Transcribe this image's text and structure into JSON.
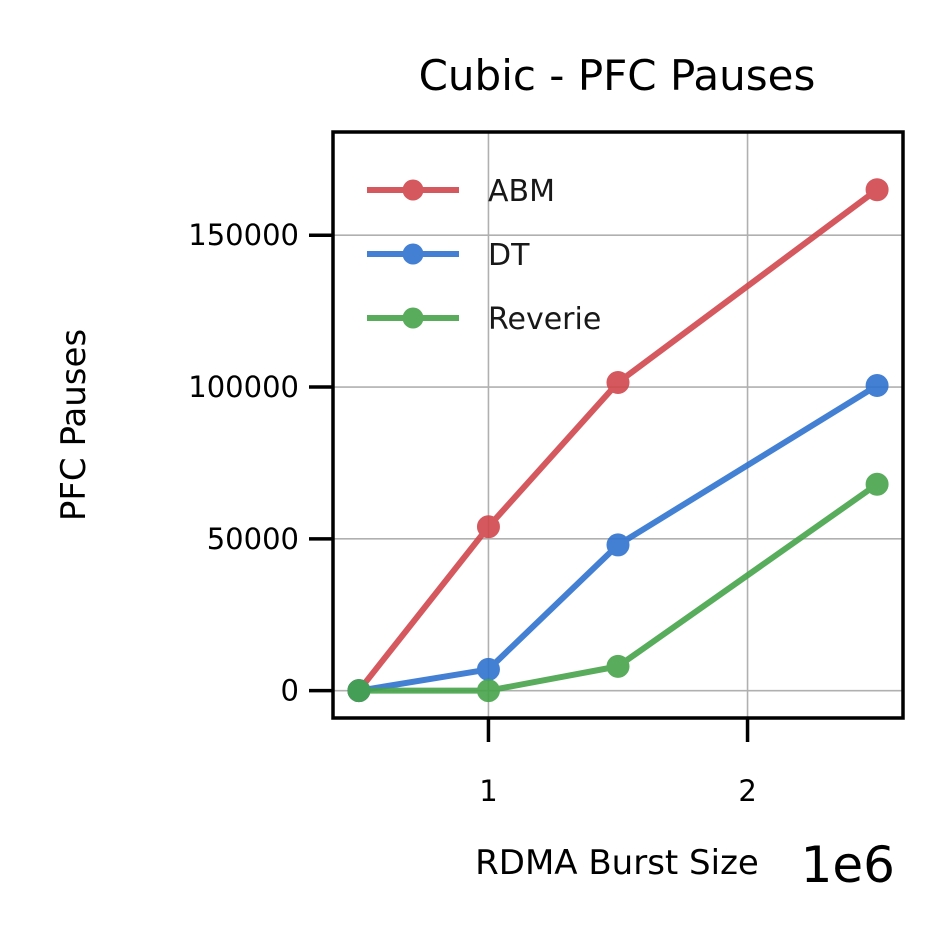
{
  "chart_data": {
    "type": "line",
    "title": "Cubic - PFC Pauses",
    "xlabel": "RDMA Burst Size",
    "ylabel": "PFC Pauses",
    "x_offset_label": "1e6",
    "x": [
      500000,
      1000000,
      1500000,
      2500000
    ],
    "xlim": [
      400000,
      2600000
    ],
    "ylim": [
      -9000,
      184000
    ],
    "xticks": [
      1000000,
      2000000
    ],
    "xtick_labels": [
      "1",
      "2"
    ],
    "yticks": [
      0,
      50000,
      100000,
      150000
    ],
    "ytick_labels": [
      "0",
      "50000",
      "100000",
      "150000"
    ],
    "grid": true,
    "legend_position": "top-left",
    "series": [
      {
        "name": "ABM",
        "color": "#d0474c",
        "values": [
          0,
          54000,
          101500,
          165000
        ]
      },
      {
        "name": "DT",
        "color": "#2f73d0",
        "values": [
          0,
          7000,
          48000,
          100500
        ]
      },
      {
        "name": "Reverie",
        "color": "#46a44a",
        "values": [
          0,
          0,
          8000,
          68000
        ]
      }
    ]
  }
}
